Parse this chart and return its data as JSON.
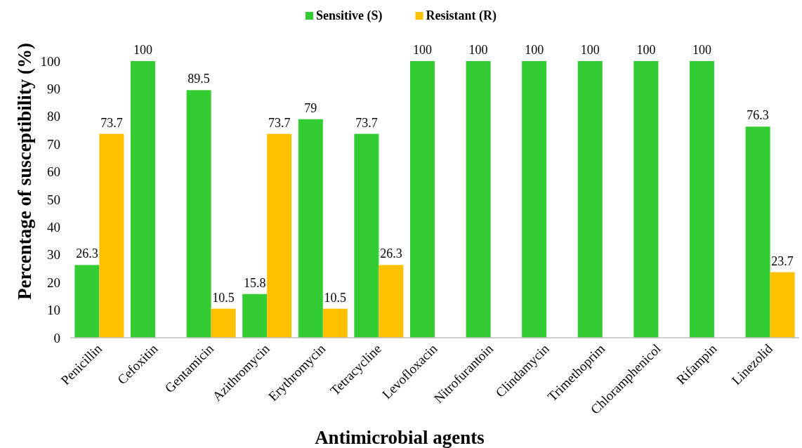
{
  "chart_data": {
    "type": "bar",
    "xlabel": "Antimicrobial agents",
    "ylabel": "Percentage of susceptibility  (%)",
    "categories": [
      "Penicillin",
      "Cefoxitin",
      "Gentamicin",
      "Azithromycin",
      "Erythromycin",
      "Tetracycline",
      "Levofloxacin",
      "Nitrofurantoin",
      "Clindamycin",
      "Trimethoprim",
      "Chloramphenicol",
      "Rifampin",
      "Linezolid"
    ],
    "series": [
      {
        "name": "Sensitive (S)",
        "color": "#33cc33",
        "values": [
          26.3,
          100,
          89.5,
          15.8,
          79,
          73.7,
          100,
          100,
          100,
          100,
          100,
          100,
          76.3
        ],
        "value_labels": [
          "26.3",
          "100",
          "89.5",
          "15.8",
          "79",
          "73.7",
          "100",
          "100",
          "100",
          "100",
          "100",
          "100",
          "76.3"
        ]
      },
      {
        "name": "Resistant (R)",
        "color": "#ffc000",
        "values": [
          73.7,
          null,
          10.5,
          73.7,
          10.5,
          26.3,
          null,
          null,
          null,
          null,
          null,
          null,
          23.7
        ],
        "value_labels": [
          "73.7",
          null,
          "10.5",
          "73.7",
          "10.5",
          "26.3",
          null,
          null,
          null,
          null,
          null,
          null,
          "23.7"
        ]
      }
    ],
    "ylim": [
      0,
      100
    ],
    "yticks": [
      0,
      10,
      20,
      30,
      40,
      50,
      60,
      70,
      80,
      90,
      100
    ],
    "legend": "top"
  }
}
